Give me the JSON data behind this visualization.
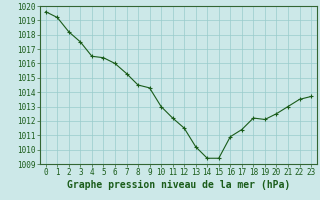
{
  "x": [
    0,
    1,
    2,
    3,
    4,
    5,
    6,
    7,
    8,
    9,
    10,
    11,
    12,
    13,
    14,
    15,
    16,
    17,
    18,
    19,
    20,
    21,
    22,
    23
  ],
  "y": [
    1019.6,
    1019.2,
    1018.2,
    1017.5,
    1016.5,
    1016.4,
    1016.0,
    1015.3,
    1014.5,
    1014.3,
    1013.0,
    1012.2,
    1011.5,
    1010.2,
    1009.4,
    1009.4,
    1010.9,
    1011.4,
    1012.2,
    1012.1,
    1012.5,
    1013.0,
    1013.5,
    1013.7
  ],
  "line_color": "#1a5c1a",
  "marker_color": "#1a5c1a",
  "bg_color": "#cce8e8",
  "grid_color": "#99cccc",
  "xlabel": "Graphe pression niveau de la mer (hPa)",
  "ylim": [
    1009,
    1020
  ],
  "xlim": [
    -0.5,
    23.5
  ],
  "yticks": [
    1009,
    1010,
    1011,
    1012,
    1013,
    1014,
    1015,
    1016,
    1017,
    1018,
    1019,
    1020
  ],
  "xticks": [
    0,
    1,
    2,
    3,
    4,
    5,
    6,
    7,
    8,
    9,
    10,
    11,
    12,
    13,
    14,
    15,
    16,
    17,
    18,
    19,
    20,
    21,
    22,
    23
  ],
  "tick_fontsize": 5.5,
  "label_fontsize": 7,
  "outer_bg": "#cce8e8"
}
